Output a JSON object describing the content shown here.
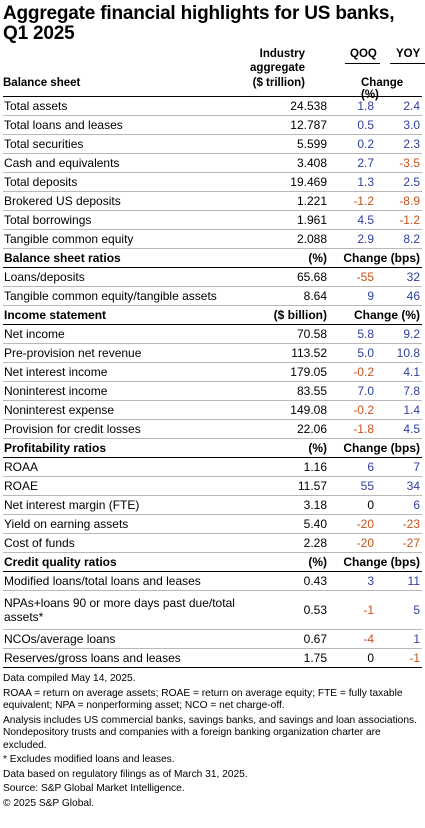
{
  "title_line1": "Aggregate financial highlights for US banks,",
  "title_line2": "Q1 2025",
  "header": {
    "industry_line1": "Industry",
    "industry_line2": "aggregate",
    "qoq": "QOQ",
    "yoy": "YOY"
  },
  "sections": [
    {
      "title": "Balance sheet",
      "unit": "($ trillion)",
      "change": "Change (%)",
      "rows": [
        {
          "label": "Total assets",
          "agg": "24.538",
          "qoq": "1.8",
          "yoy": "2.4"
        },
        {
          "label": "Total loans and leases",
          "agg": "12.787",
          "qoq": "0.5",
          "yoy": "3.0"
        },
        {
          "label": "Total securities",
          "agg": "5.599",
          "qoq": "0.2",
          "yoy": "2.3"
        },
        {
          "label": "Cash and equivalents",
          "agg": "3.408",
          "qoq": "2.7",
          "yoy": "-3.5"
        },
        {
          "label": "Total deposits",
          "agg": "19.469",
          "qoq": "1.3",
          "yoy": "2.5"
        },
        {
          "label": "Brokered US deposits",
          "agg": "1.221",
          "qoq": "-1.2",
          "yoy": "-8.9"
        },
        {
          "label": "Total borrowings",
          "agg": "1.961",
          "qoq": "4.5",
          "yoy": "-1.2"
        },
        {
          "label": "Tangible common equity",
          "agg": "2.088",
          "qoq": "2.9",
          "yoy": "8.2"
        }
      ]
    },
    {
      "title": "Balance sheet ratios",
      "unit": "(%)",
      "change": "Change (bps)",
      "rows": [
        {
          "label": "Loans/deposits",
          "agg": "65.68",
          "qoq": "-55",
          "yoy": "32"
        },
        {
          "label": "Tangible common equity/tangible assets",
          "agg": "8.64",
          "qoq": "9",
          "yoy": "46"
        }
      ]
    },
    {
      "title": "Income statement",
      "unit": "($ billion)",
      "change": "Change (%)",
      "rows": [
        {
          "label": "Net income",
          "agg": "70.58",
          "qoq": "5.8",
          "yoy": "9.2"
        },
        {
          "label": "Pre-provision net revenue",
          "agg": "113.52",
          "qoq": "5.0",
          "yoy": "10.8"
        },
        {
          "label": "Net interest income",
          "agg": "179.05",
          "qoq": "-0.2",
          "yoy": "4.1"
        },
        {
          "label": "Noninterest income",
          "agg": "83.55",
          "qoq": "7.0",
          "yoy": "7.8"
        },
        {
          "label": "Noninterest expense",
          "agg": "149.08",
          "qoq": "-0.2",
          "yoy": "1.4"
        },
        {
          "label": "Provision for credit losses",
          "agg": "22.06",
          "qoq": "-1.8",
          "yoy": "4.5"
        }
      ]
    },
    {
      "title": "Profitability ratios",
      "unit": "(%)",
      "change": "Change (bps)",
      "rows": [
        {
          "label": "ROAA",
          "agg": "1.16",
          "qoq": "6",
          "yoy": "7"
        },
        {
          "label": "ROAE",
          "agg": "11.57",
          "qoq": "55",
          "yoy": "34"
        },
        {
          "label": "Net interest margin (FTE)",
          "agg": "3.18",
          "qoq": "0",
          "yoy": "6"
        },
        {
          "label": "Yield on earning assets",
          "agg": "5.40",
          "qoq": "-20",
          "yoy": "-23"
        },
        {
          "label": "Cost of funds",
          "agg": "2.28",
          "qoq": "-20",
          "yoy": "-27"
        }
      ]
    },
    {
      "title": "Credit quality ratios",
      "unit": "(%)",
      "change": "Change (bps)",
      "rows": [
        {
          "label": "Modified loans/total loans and leases",
          "agg": "0.43",
          "qoq": "3",
          "yoy": "11"
        },
        {
          "label": "NPAs+loans 90 or more days past due/total assets*",
          "agg": "0.53",
          "qoq": "-1",
          "yoy": "5",
          "two_line": true
        },
        {
          "label": "NCOs/average loans",
          "agg": "0.67",
          "qoq": "-4",
          "yoy": "1"
        },
        {
          "label": "Reserves/gross loans and leases",
          "agg": "1.75",
          "qoq": "0",
          "yoy": "-1"
        }
      ]
    }
  ],
  "notes": [
    "Data compiled May 14, 2025.",
    "ROAA = return on average assets; ROAE = return on average equity; FTE = fully taxable equivalent; NPA = nonperforming asset; NCO = net charge-off.",
    "Analysis includes US commercial banks, savings banks, and savings and loan associations. Nondepository trusts and companies with a foreign banking organization charter are excluded.",
    "* Excludes modified loans and leases.",
    "Data based on regulatory filings as of March 31, 2025.",
    "Source: S&P Global Market Intelligence.",
    "© 2025 S&P Global."
  ],
  "colors": {
    "positive": "#2e3f9f",
    "negative": "#c8531a"
  }
}
